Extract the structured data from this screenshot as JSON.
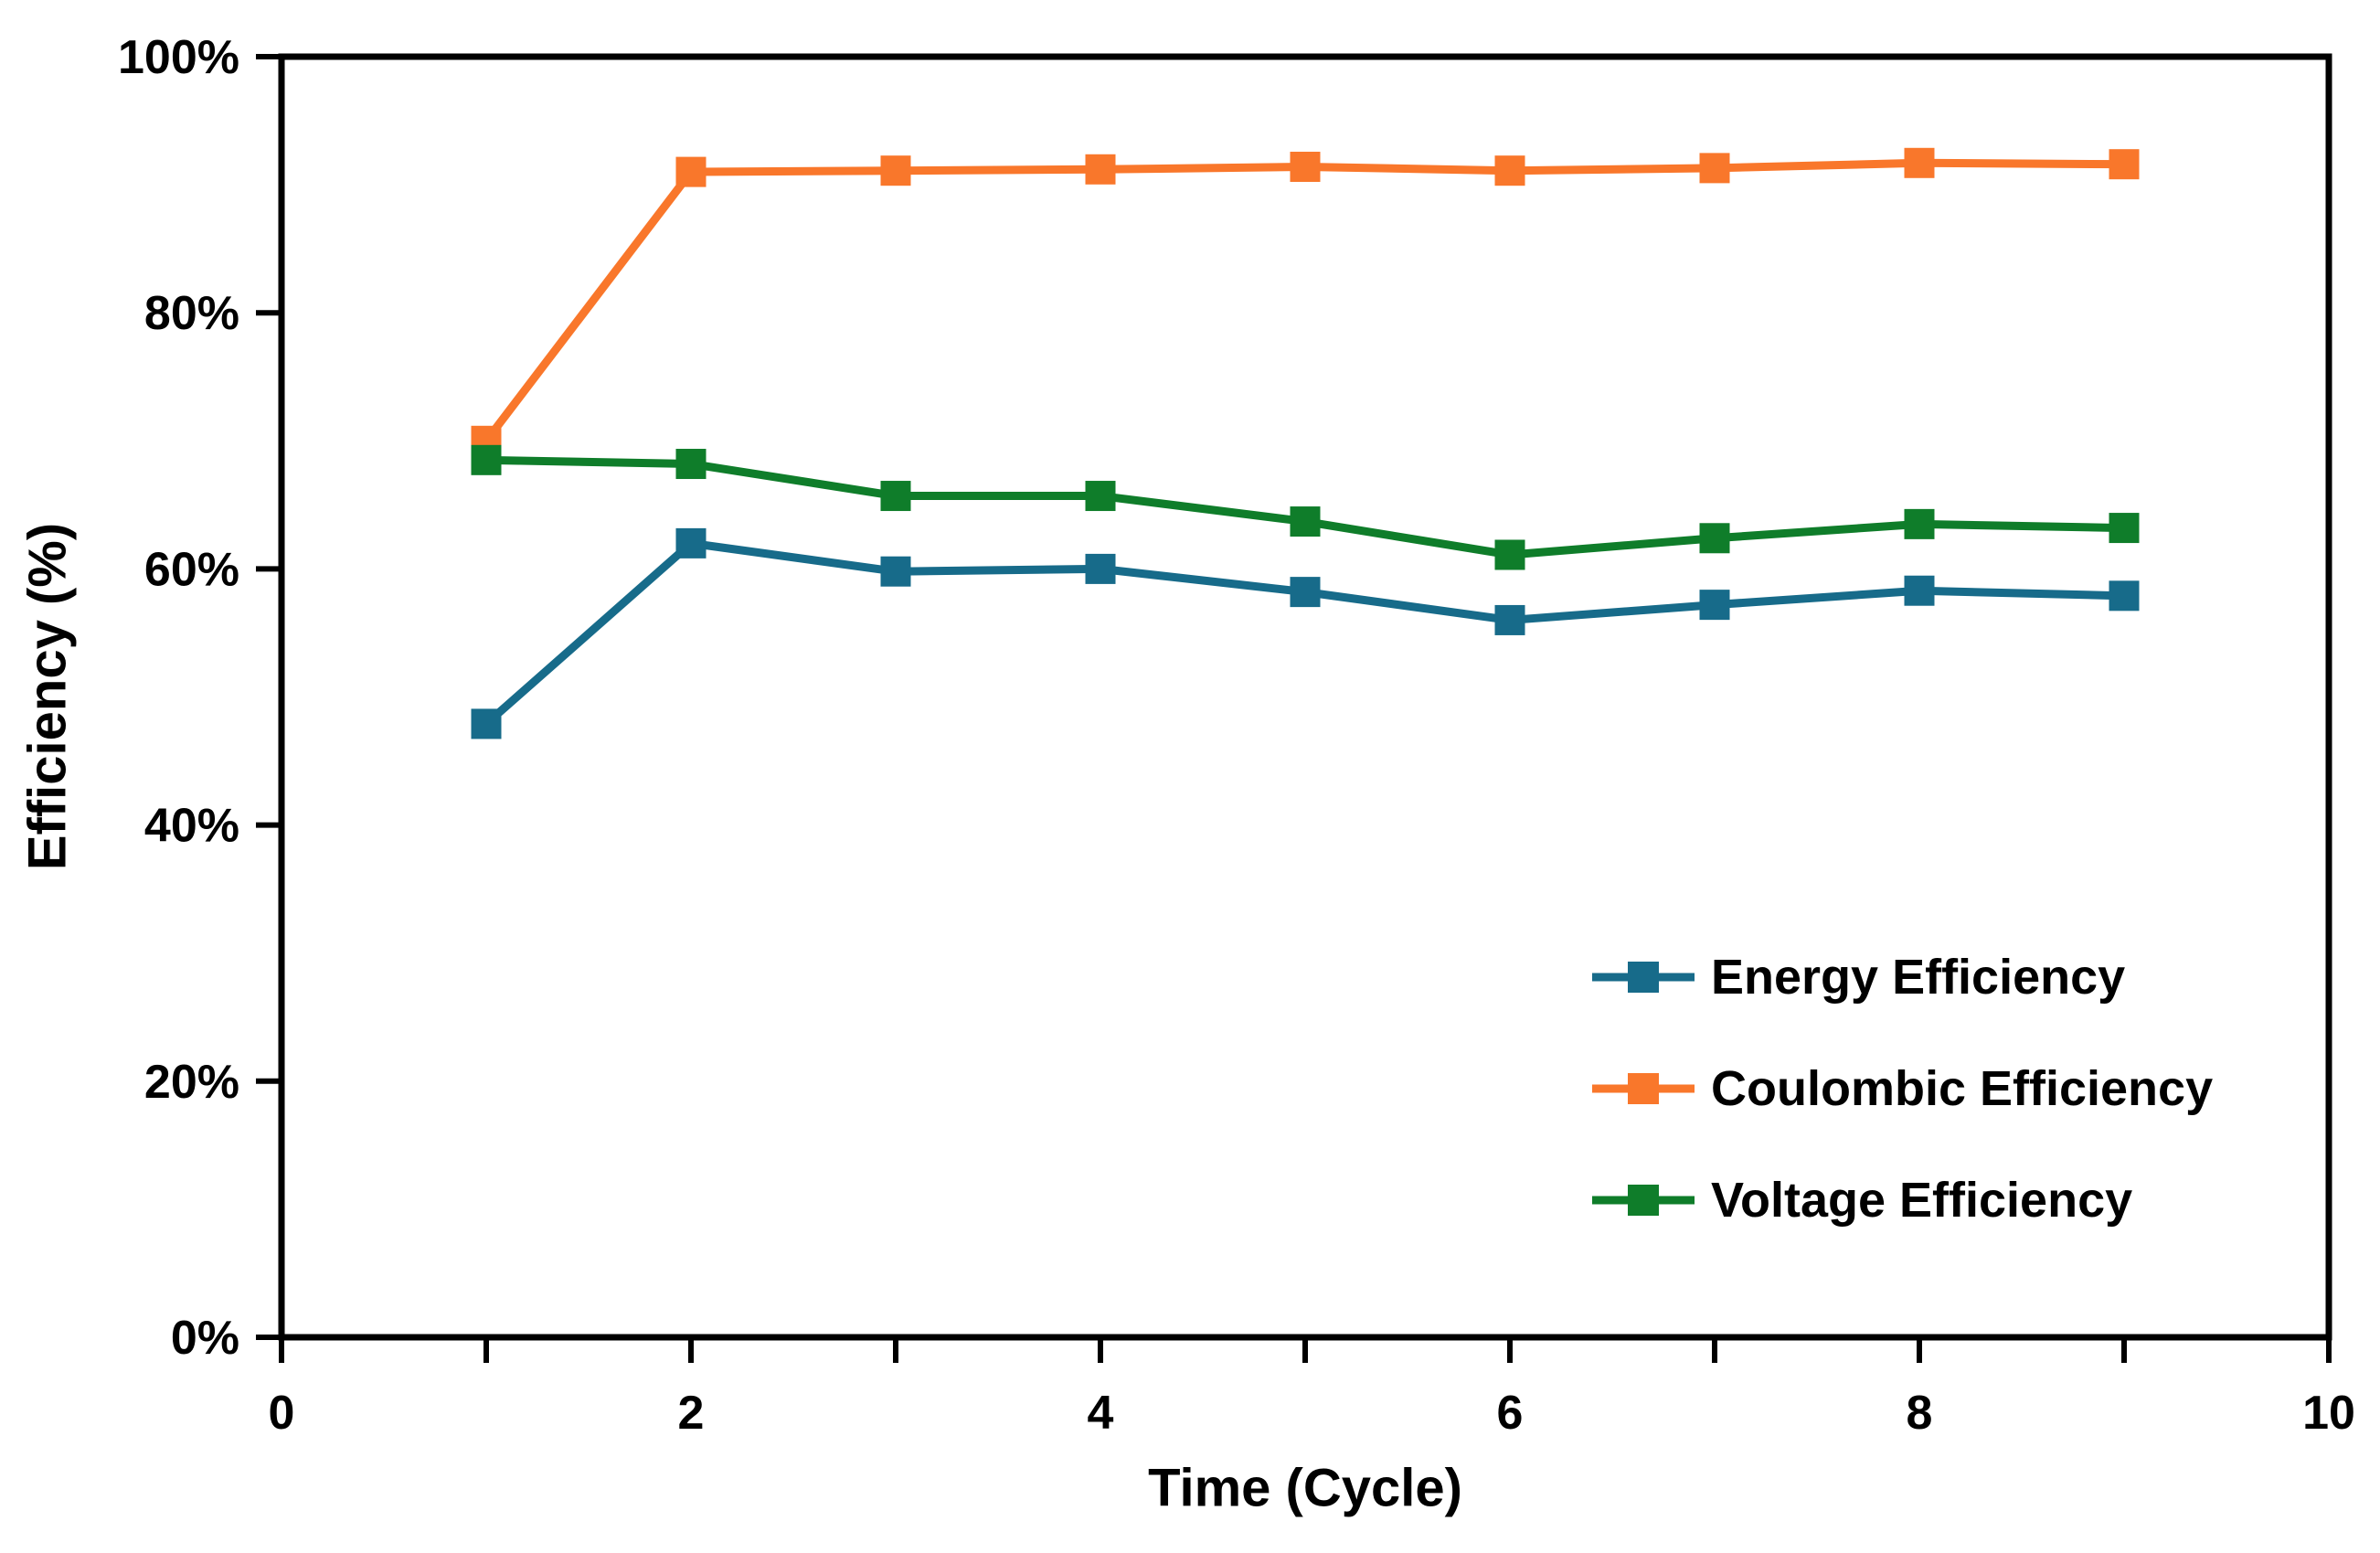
{
  "figure": {
    "background_color": "#ffffff",
    "text_color": "#000000",
    "y_axis_title": "Efficiency (%)",
    "x_axis_title": "Time (Cycle)"
  },
  "legend": {
    "position": "inside-lower-right",
    "items": [
      {
        "label": "Energy Efficiency",
        "color": "#176B8A",
        "marker": "square-on-line"
      },
      {
        "label": "Coulombic Efficiency",
        "color": "#F9772B",
        "marker": "square-on-line"
      },
      {
        "label": "Voltage Efficiency",
        "color": "#0F7D2A",
        "marker": "square-on-line"
      }
    ]
  },
  "chart_data": {
    "type": "line",
    "title": "",
    "xlabel": "Time (Cycle)",
    "ylabel": "Efficiency (%)",
    "xlim": [
      0,
      10
    ],
    "ylim": [
      0,
      100
    ],
    "grid": false,
    "marker": "square",
    "x_ticks": [
      0,
      1,
      2,
      3,
      4,
      5,
      6,
      7,
      8,
      9,
      10
    ],
    "x_tick_labels": [
      "0",
      "",
      "2",
      "",
      "4",
      "",
      "6",
      "",
      "8",
      "",
      "10"
    ],
    "y_ticks": [
      0,
      20,
      40,
      60,
      80,
      100
    ],
    "y_tick_labels": [
      "0%",
      "20%",
      "40%",
      "60%",
      "80%",
      "100%"
    ],
    "x": [
      1,
      2,
      3,
      4,
      5,
      6,
      7,
      8,
      9
    ],
    "series": [
      {
        "name": "Energy Efficiency",
        "color": "#176B8A",
        "values": [
          47.9,
          62.0,
          59.8,
          60.0,
          58.2,
          56.0,
          57.2,
          58.3,
          57.9
        ]
      },
      {
        "name": "Coulombic Efficiency",
        "color": "#F9772B",
        "values": [
          70.0,
          91.0,
          91.1,
          91.2,
          91.4,
          91.1,
          91.3,
          91.7,
          91.6
        ]
      },
      {
        "name": "Voltage Efficiency",
        "color": "#0F7D2A",
        "values": [
          68.5,
          68.2,
          65.7,
          65.7,
          63.7,
          61.1,
          62.4,
          63.5,
          63.2
        ]
      }
    ]
  }
}
